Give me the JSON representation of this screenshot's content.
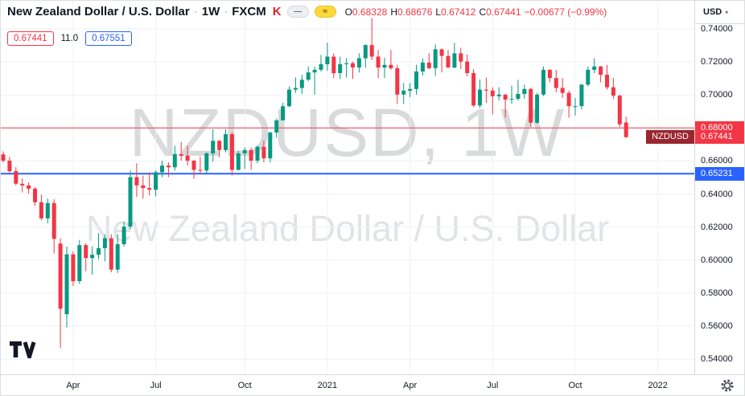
{
  "header": {
    "symbol_title": "New Zealand Dollar / U.S. Dollar",
    "interval": "1W",
    "exchange": "FXCM",
    "separator": "·",
    "fxcm_logo": "K",
    "toggle_dash": "—",
    "toggle_wave": "≈",
    "ohlc": {
      "o_label": "O",
      "o": "0.68328",
      "h_label": "H",
      "h": "0.68676",
      "l_label": "L",
      "l": "0.67412",
      "c_label": "C",
      "c": "0.67441",
      "change": "−0.00677 (−0.99%)"
    },
    "currency": "USD",
    "chevron": "▾"
  },
  "widgets": {
    "price_box_red": "0.67441",
    "mid_value": "11.0",
    "price_box_blue": "0.67551"
  },
  "watermark": {
    "line1": "NZDUSD, 1W",
    "line2": "New Zealand Dollar / U.S. Dollar"
  },
  "icons": {
    "logo": "tradingview-logo",
    "settings": "gear",
    "currency_dropdown": "chevron-down"
  },
  "colors": {
    "up": "#089981",
    "down": "#f23645",
    "accent_red": "#f23645",
    "accent_blue": "#2962ff",
    "text": "#131722",
    "grid": "#eef1f6"
  },
  "chart_data": {
    "type": "candlestick",
    "title": "New Zealand Dollar / U.S. Dollar",
    "symbol": "NZDUSD",
    "interval": "1W",
    "exchange": "FXCM",
    "grid": true,
    "grid_color": "#eef1f6",
    "up_color": "#089981",
    "down_color": "#f23645",
    "y_range": [
      0.5308,
      0.757
    ],
    "x_start": 3,
    "x_step": 7.9,
    "candle_width": 5,
    "y_ticks": [
      {
        "value": 0.74,
        "label": "0.74000"
      },
      {
        "value": 0.72,
        "label": "0.72000"
      },
      {
        "value": 0.7,
        "label": "0.70000"
      },
      {
        "value": 0.68,
        "label": "0.68000"
      },
      {
        "value": 0.66,
        "label": "0.66000"
      },
      {
        "value": 0.64,
        "label": "0.64000"
      },
      {
        "value": 0.62,
        "label": "0.62000"
      },
      {
        "value": 0.6,
        "label": "0.60000"
      },
      {
        "value": 0.58,
        "label": "0.58000"
      },
      {
        "value": 0.56,
        "label": "0.56000"
      },
      {
        "value": 0.54,
        "label": "0.54000"
      }
    ],
    "x_ticks": [
      {
        "index": 11,
        "label": "Apr"
      },
      {
        "index": 24,
        "label": "Jul"
      },
      {
        "index": 38,
        "label": "Oct"
      },
      {
        "index": 51,
        "label": "2021"
      },
      {
        "index": 64,
        "label": "Apr"
      },
      {
        "index": 77,
        "label": "Jul"
      },
      {
        "index": 90,
        "label": "Oct"
      },
      {
        "index": 103,
        "label": "2022"
      }
    ],
    "price_lines": [
      {
        "value": 0.68,
        "label": "0.68000",
        "color": "#f23645",
        "width": 1
      },
      {
        "value": 0.65231,
        "label": "0.65231",
        "color": "#2962ff",
        "width": 2
      }
    ],
    "last_price": {
      "symbol": "NZDUSD",
      "value": 0.67441,
      "label": "0.67441",
      "price_bg": "#f23645",
      "symbol_bg": "#99262e"
    },
    "candles": [
      [
        0.664,
        0.6658,
        0.659,
        0.6602
      ],
      [
        0.6602,
        0.6625,
        0.6528,
        0.6538
      ],
      [
        0.6538,
        0.6562,
        0.6452,
        0.6462
      ],
      [
        0.6462,
        0.6495,
        0.641,
        0.6452
      ],
      [
        0.6452,
        0.647,
        0.6402,
        0.6432
      ],
      [
        0.6432,
        0.6442,
        0.6328,
        0.635
      ],
      [
        0.635,
        0.6395,
        0.624,
        0.6252
      ],
      [
        0.6252,
        0.6372,
        0.6222,
        0.6345
      ],
      [
        0.6345,
        0.6368,
        0.604,
        0.6128
      ],
      [
        0.61,
        0.6132,
        0.5469,
        0.5705
      ],
      [
        0.5672,
        0.6082,
        0.5592,
        0.6035
      ],
      [
        0.6035,
        0.6052,
        0.5842,
        0.5872
      ],
      [
        0.5872,
        0.6122,
        0.5856,
        0.609
      ],
      [
        0.609,
        0.6102,
        0.5932,
        0.6012
      ],
      [
        0.6012,
        0.6082,
        0.5912,
        0.6032
      ],
      [
        0.6032,
        0.6162,
        0.6006,
        0.6072
      ],
      [
        0.6072,
        0.6156,
        0.5992,
        0.6132
      ],
      [
        0.6132,
        0.6156,
        0.5926,
        0.5942
      ],
      [
        0.5942,
        0.6156,
        0.5922,
        0.6096
      ],
      [
        0.6096,
        0.6232,
        0.6082,
        0.6202
      ],
      [
        0.6202,
        0.6542,
        0.6186,
        0.6502
      ],
      [
        0.6502,
        0.6586,
        0.6382,
        0.6452
      ],
      [
        0.6452,
        0.6512,
        0.6372,
        0.6436
      ],
      [
        0.6436,
        0.6532,
        0.6392,
        0.6426
      ],
      [
        0.6426,
        0.6542,
        0.6386,
        0.6532
      ],
      [
        0.6532,
        0.6602,
        0.6502,
        0.6572
      ],
      [
        0.6572,
        0.6592,
        0.6502,
        0.6562
      ],
      [
        0.6562,
        0.6692,
        0.6542,
        0.6642
      ],
      [
        0.6642,
        0.6716,
        0.6602,
        0.6632
      ],
      [
        0.6632,
        0.6692,
        0.6572,
        0.6602
      ],
      [
        0.6602,
        0.6606,
        0.6492,
        0.6546
      ],
      [
        0.6546,
        0.6626,
        0.6522,
        0.6542
      ],
      [
        0.6542,
        0.6652,
        0.6522,
        0.6646
      ],
      [
        0.6646,
        0.6792,
        0.6596,
        0.6722
      ],
      [
        0.6722,
        0.6726,
        0.6622,
        0.6666
      ],
      [
        0.6666,
        0.6792,
        0.6652,
        0.6762
      ],
      [
        0.6762,
        0.6772,
        0.6512,
        0.6546
      ],
      [
        0.6546,
        0.6662,
        0.6542,
        0.6646
      ],
      [
        0.6646,
        0.6682,
        0.6552,
        0.6666
      ],
      [
        0.6666,
        0.6682,
        0.6546,
        0.6602
      ],
      [
        0.6602,
        0.6692,
        0.6586,
        0.6686
      ],
      [
        0.6686,
        0.6722,
        0.6592,
        0.6616
      ],
      [
        0.6616,
        0.6776,
        0.6592,
        0.6772
      ],
      [
        0.6772,
        0.6856,
        0.6742,
        0.6846
      ],
      [
        0.6846,
        0.6952,
        0.6846,
        0.6932
      ],
      [
        0.6932,
        0.7052,
        0.6926,
        0.7032
      ],
      [
        0.7032,
        0.7106,
        0.7012,
        0.7042
      ],
      [
        0.7042,
        0.7122,
        0.7006,
        0.7092
      ],
      [
        0.7092,
        0.7172,
        0.7082,
        0.7136
      ],
      [
        0.7136,
        0.7172,
        0.7002,
        0.7152
      ],
      [
        0.7152,
        0.7242,
        0.7142,
        0.7186
      ],
      [
        0.7186,
        0.7316,
        0.7146,
        0.7232
      ],
      [
        0.7232,
        0.7252,
        0.7102,
        0.7132
      ],
      [
        0.7132,
        0.7232,
        0.7096,
        0.7186
      ],
      [
        0.7186,
        0.7222,
        0.7106,
        0.7192
      ],
      [
        0.7192,
        0.7202,
        0.7096,
        0.7166
      ],
      [
        0.7166,
        0.7252,
        0.7136,
        0.7222
      ],
      [
        0.7222,
        0.7306,
        0.7166,
        0.7302
      ],
      [
        0.7302,
        0.7465,
        0.7212,
        0.7232
      ],
      [
        0.7232,
        0.7272,
        0.7102,
        0.7166
      ],
      [
        0.7166,
        0.7226,
        0.7102,
        0.7182
      ],
      [
        0.7182,
        0.7272,
        0.7152,
        0.7162
      ],
      [
        0.7162,
        0.7182,
        0.6946,
        0.7002
      ],
      [
        0.7002,
        0.7072,
        0.6946,
        0.7026
      ],
      [
        0.7026,
        0.7072,
        0.6986,
        0.7036
      ],
      [
        0.7036,
        0.7182,
        0.7002,
        0.7142
      ],
      [
        0.7142,
        0.7222,
        0.7116,
        0.7196
      ],
      [
        0.7196,
        0.7252,
        0.7156,
        0.7162
      ],
      [
        0.7162,
        0.7306,
        0.7116,
        0.7276
      ],
      [
        0.7276,
        0.7282,
        0.7136,
        0.7236
      ],
      [
        0.7236,
        0.7272,
        0.7166,
        0.7166
      ],
      [
        0.7166,
        0.7316,
        0.7162,
        0.7252
      ],
      [
        0.7252,
        0.7286,
        0.7156,
        0.7202
      ],
      [
        0.7202,
        0.7246,
        0.7112,
        0.7132
      ],
      [
        0.7132,
        0.7156,
        0.6926,
        0.6936
      ],
      [
        0.6936,
        0.7092,
        0.6922,
        0.7032
      ],
      [
        0.7032,
        0.7106,
        0.6952,
        0.7026
      ],
      [
        0.7026,
        0.7046,
        0.6882,
        0.6992
      ],
      [
        0.6992,
        0.7046,
        0.6966,
        0.7002
      ],
      [
        0.7002,
        0.7006,
        0.6862,
        0.6972
      ],
      [
        0.6972,
        0.7056,
        0.6946,
        0.6976
      ],
      [
        0.6976,
        0.7092,
        0.6966,
        0.7006
      ],
      [
        0.7006,
        0.7062,
        0.6976,
        0.7036
      ],
      [
        0.7036,
        0.7042,
        0.6806,
        0.6832
      ],
      [
        0.6832,
        0.7012,
        0.6826,
        0.7002
      ],
      [
        0.7002,
        0.7172,
        0.6992,
        0.7152
      ],
      [
        0.7152,
        0.7156,
        0.7076,
        0.7102
      ],
      [
        0.7102,
        0.7152,
        0.7016,
        0.7042
      ],
      [
        0.7042,
        0.7102,
        0.6982,
        0.7012
      ],
      [
        0.7012,
        0.7026,
        0.6862,
        0.6932
      ],
      [
        0.6932,
        0.6982,
        0.6876,
        0.6932
      ],
      [
        0.6932,
        0.7066,
        0.6912,
        0.7062
      ],
      [
        0.7062,
        0.7172,
        0.7052,
        0.7152
      ],
      [
        0.7152,
        0.7222,
        0.7132,
        0.7172
      ],
      [
        0.7172,
        0.7176,
        0.7076,
        0.7122
      ],
      [
        0.7122,
        0.7182,
        0.7032,
        0.7046
      ],
      [
        0.7046,
        0.7102,
        0.6976,
        0.6996
      ],
      [
        0.6996,
        0.7002,
        0.6806,
        0.6822
      ],
      [
        0.6833,
        0.6868,
        0.6741,
        0.6744
      ]
    ]
  }
}
